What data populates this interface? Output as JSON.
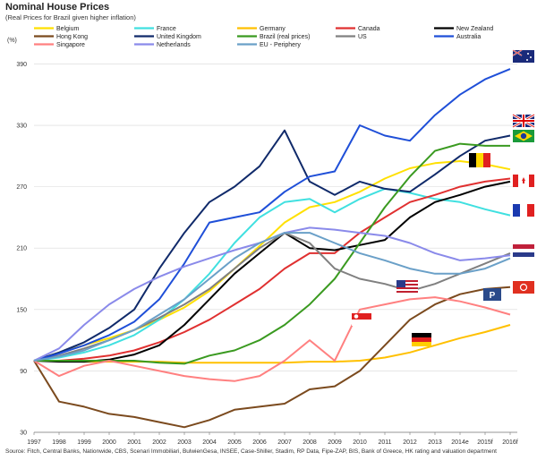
{
  "chart_data": {
    "type": "line",
    "title": "Nominal House Prices",
    "subtitle": "(Real  Prices for Brazil given higher inflation)",
    "ylabel": "(%)",
    "xlabel": "",
    "x": [
      1997,
      1998,
      1999,
      2000,
      2001,
      2002,
      2003,
      2004,
      2005,
      2006,
      2007,
      2008,
      2009,
      2010,
      2011,
      2012,
      2013,
      2014,
      2015,
      2016
    ],
    "x_tick_labels": [
      "1997",
      "1998",
      "1999",
      "2000",
      "2001",
      "2002",
      "2003",
      "2004",
      "2005",
      "2006",
      "2007",
      "2008",
      "2009",
      "2010",
      "2011",
      "2012",
      "2013",
      "2014e",
      "2015f",
      "2016f"
    ],
    "ylim": [
      30,
      400
    ],
    "y_ticks": [
      30,
      90,
      150,
      210,
      270,
      330,
      390
    ],
    "legend_position": "top",
    "series": [
      {
        "name": "Belgium",
        "color": "#ffe000",
        "values": [
          100,
          108,
          115,
          122,
          130,
          140,
          152,
          168,
          190,
          212,
          235,
          250,
          255,
          265,
          278,
          288,
          293,
          295,
          292,
          287
        ]
      },
      {
        "name": "France",
        "color": "#40e0e0",
        "values": [
          100,
          103,
          108,
          115,
          125,
          140,
          160,
          185,
          215,
          240,
          255,
          258,
          245,
          258,
          268,
          264,
          258,
          255,
          248,
          242
        ]
      },
      {
        "name": "Germany",
        "color": "#ffc000",
        "values": [
          100,
          100,
          99,
          99,
          99,
          99,
          98,
          98,
          98,
          98,
          98,
          99,
          99,
          100,
          103,
          108,
          115,
          122,
          128,
          135
        ]
      },
      {
        "name": "Canada",
        "color": "#e03030",
        "values": [
          100,
          100,
          102,
          105,
          110,
          118,
          128,
          140,
          155,
          170,
          190,
          205,
          205,
          225,
          240,
          255,
          262,
          270,
          275,
          278
        ]
      },
      {
        "name": "New Zealand",
        "color": "#000000",
        "values": [
          100,
          99,
          99,
          101,
          106,
          115,
          135,
          160,
          185,
          205,
          225,
          210,
          208,
          213,
          218,
          240,
          255,
          262,
          270,
          275
        ]
      },
      {
        "name": "Hong Kong",
        "color": "#7b4a1e",
        "values": [
          100,
          60,
          55,
          48,
          45,
          40,
          35,
          42,
          52,
          55,
          58,
          72,
          75,
          90,
          115,
          140,
          155,
          165,
          170,
          172
        ]
      },
      {
        "name": "United Kingdom",
        "color": "#102a6a",
        "values": [
          100,
          108,
          118,
          132,
          150,
          190,
          225,
          255,
          270,
          290,
          325,
          275,
          262,
          275,
          268,
          265,
          282,
          300,
          315,
          320
        ]
      },
      {
        "name": "Brazil (real prices)",
        "color": "#3a9a20",
        "values": [
          100,
          100,
          100,
          100,
          100,
          98,
          97,
          105,
          110,
          120,
          135,
          155,
          180,
          215,
          250,
          280,
          305,
          312,
          310,
          310
        ]
      },
      {
        "name": "US",
        "color": "#808080",
        "values": [
          100,
          105,
          112,
          120,
          130,
          142,
          155,
          170,
          190,
          210,
          225,
          215,
          190,
          180,
          175,
          168,
          175,
          185,
          195,
          205
        ]
      },
      {
        "name": "Australia",
        "color": "#1f4fd8",
        "values": [
          100,
          107,
          115,
          125,
          138,
          160,
          195,
          235,
          240,
          245,
          265,
          280,
          285,
          330,
          320,
          315,
          340,
          360,
          375,
          385
        ]
      },
      {
        "name": "Singapore",
        "color": "#ff8080",
        "values": [
          100,
          85,
          95,
          100,
          95,
          90,
          85,
          82,
          80,
          85,
          100,
          120,
          100,
          150,
          155,
          160,
          162,
          158,
          152,
          145
        ]
      },
      {
        "name": "Netherlands",
        "color": "#8a8aea",
        "values": [
          100,
          112,
          135,
          155,
          170,
          182,
          192,
          200,
          208,
          215,
          225,
          230,
          228,
          225,
          222,
          215,
          205,
          198,
          200,
          203
        ]
      },
      {
        "name": "EU - Periphery",
        "color": "#6aa0c8",
        "values": [
          100,
          104,
          110,
          120,
          130,
          145,
          160,
          180,
          200,
          215,
          225,
          225,
          215,
          205,
          198,
          190,
          185,
          185,
          190,
          200
        ]
      }
    ]
  },
  "source": "Source: Fitch, Central Banks, Nationwide, CBS, Scenari Immobiliari, BulwienGesa, INSEE, Case-Shiller, Stadim, RP Data, Fipe-ZAP, BIS, Bank of Greece, HK rating and valuation department",
  "flag_icons": [
    "australia-flag-icon",
    "uk-flag-icon",
    "brazil-flag-icon",
    "belgium-flag-icon",
    "canada-flag-icon",
    "france-flag-icon",
    "netherlands-flag-icon",
    "hong-kong-flag-icon",
    "us-flag-icon",
    "singapore-flag-icon",
    "germany-flag-icon"
  ],
  "p_badge": "P"
}
